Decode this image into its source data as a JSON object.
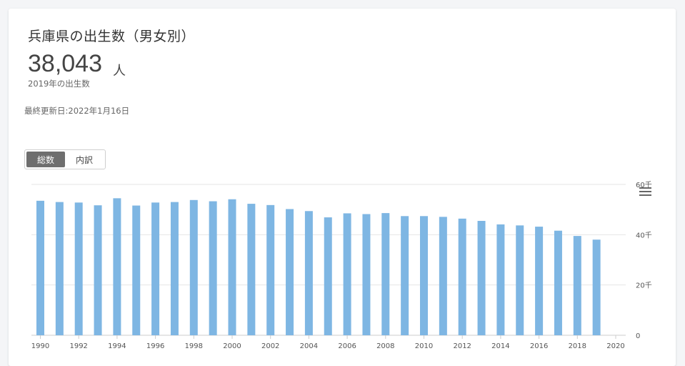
{
  "header": {
    "title": "兵庫県の出生数（男女別）",
    "value": "38,043",
    "unit": "人",
    "subtitle": "2019年の出生数",
    "updated": "最終更新日:2022年1月16日"
  },
  "toggle": {
    "options": [
      "総数",
      "内訳"
    ],
    "selected": "総数"
  },
  "icons": {
    "menu": "hamburger-menu-icon"
  },
  "colors": {
    "bar": "#7eb6e3",
    "grid": "#e6e6e6",
    "axis": "#cccccc"
  },
  "chart_data": {
    "type": "bar",
    "categories": [
      "1990",
      "1991",
      "1992",
      "1993",
      "1994",
      "1995",
      "1996",
      "1997",
      "1998",
      "1999",
      "2000",
      "2001",
      "2002",
      "2003",
      "2004",
      "2005",
      "2006",
      "2007",
      "2008",
      "2009",
      "2010",
      "2011",
      "2012",
      "2013",
      "2014",
      "2015",
      "2016",
      "2017",
      "2018",
      "2019"
    ],
    "values": [
      53500,
      53000,
      52800,
      51700,
      54500,
      51600,
      52800,
      53000,
      53800,
      53300,
      54100,
      52300,
      51800,
      50200,
      49400,
      46900,
      48500,
      48200,
      48600,
      47400,
      47400,
      47100,
      46400,
      45500,
      44100,
      43700,
      43200,
      41600,
      39500,
      38043
    ],
    "ylim": [
      0,
      60000
    ],
    "yticks": [
      "0",
      "20千",
      "40千",
      "60千"
    ],
    "xticks": [
      "1990",
      "1992",
      "1994",
      "1996",
      "1998",
      "2000",
      "2002",
      "2004",
      "2006",
      "2008",
      "2010",
      "2012",
      "2014",
      "2016",
      "2018",
      "2020"
    ],
    "grid": true,
    "yaxis_position": "right"
  }
}
